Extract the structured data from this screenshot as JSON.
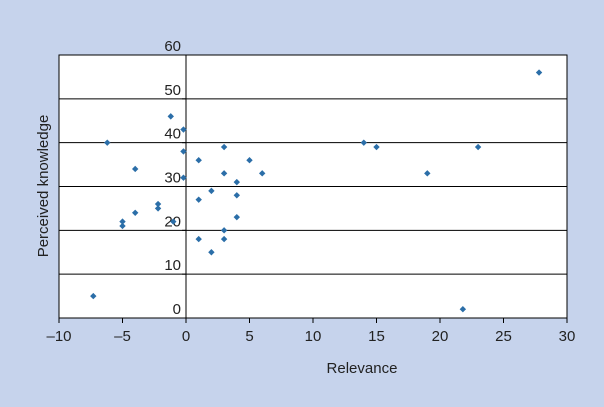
{
  "chart_data": {
    "type": "scatter",
    "title": "",
    "xlabel": "Relevance",
    "ylabel": "Perceived knowledge",
    "xlim": [
      -10,
      30
    ],
    "ylim": [
      0,
      60
    ],
    "x_ticks": [
      -10,
      -5,
      0,
      5,
      10,
      15,
      20,
      25,
      30
    ],
    "x_tick_labels": [
      "–10",
      "–5",
      "0",
      "5",
      "10",
      "15",
      "20",
      "25",
      "30"
    ],
    "y_ticks": [
      0,
      10,
      20,
      30,
      40,
      50,
      60
    ],
    "y_tick_labels": [
      "0",
      "10",
      "20",
      "30",
      "40",
      "50",
      "60"
    ],
    "grid": "horizontal",
    "colors": {
      "background": "#c6d3ec",
      "plot": "#ffffff",
      "marker": "#2b6ea8",
      "grid": "#000000"
    },
    "points": [
      {
        "x": -7.3,
        "y": 5
      },
      {
        "x": -6.2,
        "y": 40
      },
      {
        "x": -5.0,
        "y": 22
      },
      {
        "x": -5.0,
        "y": 21
      },
      {
        "x": -4.0,
        "y": 24
      },
      {
        "x": -4.0,
        "y": 34
      },
      {
        "x": -2.2,
        "y": 26
      },
      {
        "x": -2.2,
        "y": 25
      },
      {
        "x": -1.2,
        "y": 46
      },
      {
        "x": -1.0,
        "y": 22
      },
      {
        "x": -0.2,
        "y": 43
      },
      {
        "x": -0.2,
        "y": 38
      },
      {
        "x": -0.2,
        "y": 32
      },
      {
        "x": 1.0,
        "y": 36
      },
      {
        "x": 1.0,
        "y": 27
      },
      {
        "x": 1.0,
        "y": 18
      },
      {
        "x": 2.0,
        "y": 29
      },
      {
        "x": 2.0,
        "y": 15
      },
      {
        "x": 3.0,
        "y": 39
      },
      {
        "x": 3.0,
        "y": 33
      },
      {
        "x": 3.0,
        "y": 20
      },
      {
        "x": 3.0,
        "y": 18
      },
      {
        "x": 4.0,
        "y": 31
      },
      {
        "x": 4.0,
        "y": 28
      },
      {
        "x": 4.0,
        "y": 23
      },
      {
        "x": 5.0,
        "y": 36
      },
      {
        "x": 6.0,
        "y": 33
      },
      {
        "x": 14.0,
        "y": 40
      },
      {
        "x": 15.0,
        "y": 39
      },
      {
        "x": 19.0,
        "y": 33
      },
      {
        "x": 21.8,
        "y": 2
      },
      {
        "x": 23.0,
        "y": 39
      },
      {
        "x": 27.8,
        "y": 56
      }
    ]
  }
}
